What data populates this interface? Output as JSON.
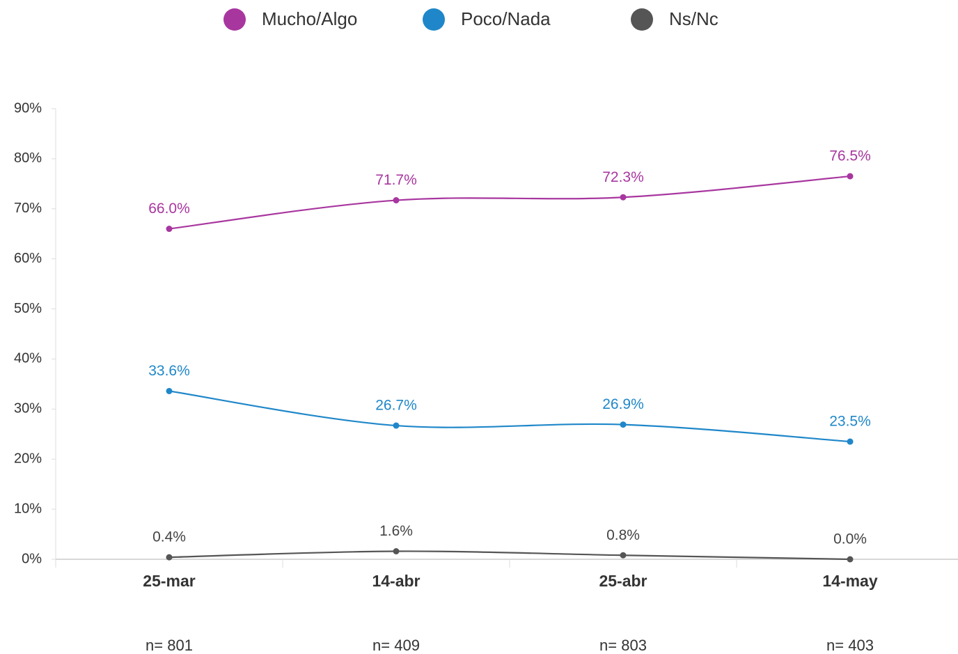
{
  "chart_data": {
    "type": "line",
    "categories": [
      "25-mar",
      "14-abr",
      "25-abr",
      "14-may"
    ],
    "sample_sizes": [
      "n= 801",
      "n= 409",
      "n= 803",
      "n= 403"
    ],
    "series": [
      {
        "name": "Mucho/Algo",
        "color": "#a8369f",
        "values": [
          66.0,
          71.7,
          72.3,
          76.5
        ],
        "value_labels": [
          "66.0%",
          "71.7%",
          "72.3%",
          "76.5%"
        ]
      },
      {
        "name": "Poco/Nada",
        "color": "#1f87c9",
        "values": [
          33.6,
          26.7,
          26.9,
          23.5
        ],
        "value_labels": [
          "33.6%",
          "26.7%",
          "26.9%",
          "23.5%"
        ]
      },
      {
        "name": "Ns/Nc",
        "color": "#555555",
        "values": [
          0.4,
          1.6,
          0.8,
          0.0
        ],
        "value_labels": [
          "0.4%",
          "1.6%",
          "0.8%",
          "0.0%"
        ]
      }
    ],
    "ylim": [
      0,
      90
    ],
    "yticks": [
      {
        "value": 0,
        "label": "0%"
      },
      {
        "value": 10,
        "label": "10%"
      },
      {
        "value": 20,
        "label": "20%"
      },
      {
        "value": 30,
        "label": "30%"
      },
      {
        "value": 40,
        "label": "40%"
      },
      {
        "value": 50,
        "label": "50%"
      },
      {
        "value": 60,
        "label": "60%"
      },
      {
        "value": 70,
        "label": "70%"
      },
      {
        "value": 80,
        "label": "80%"
      },
      {
        "value": 90,
        "label": "90%"
      }
    ],
    "grid": false,
    "legend": "top"
  }
}
